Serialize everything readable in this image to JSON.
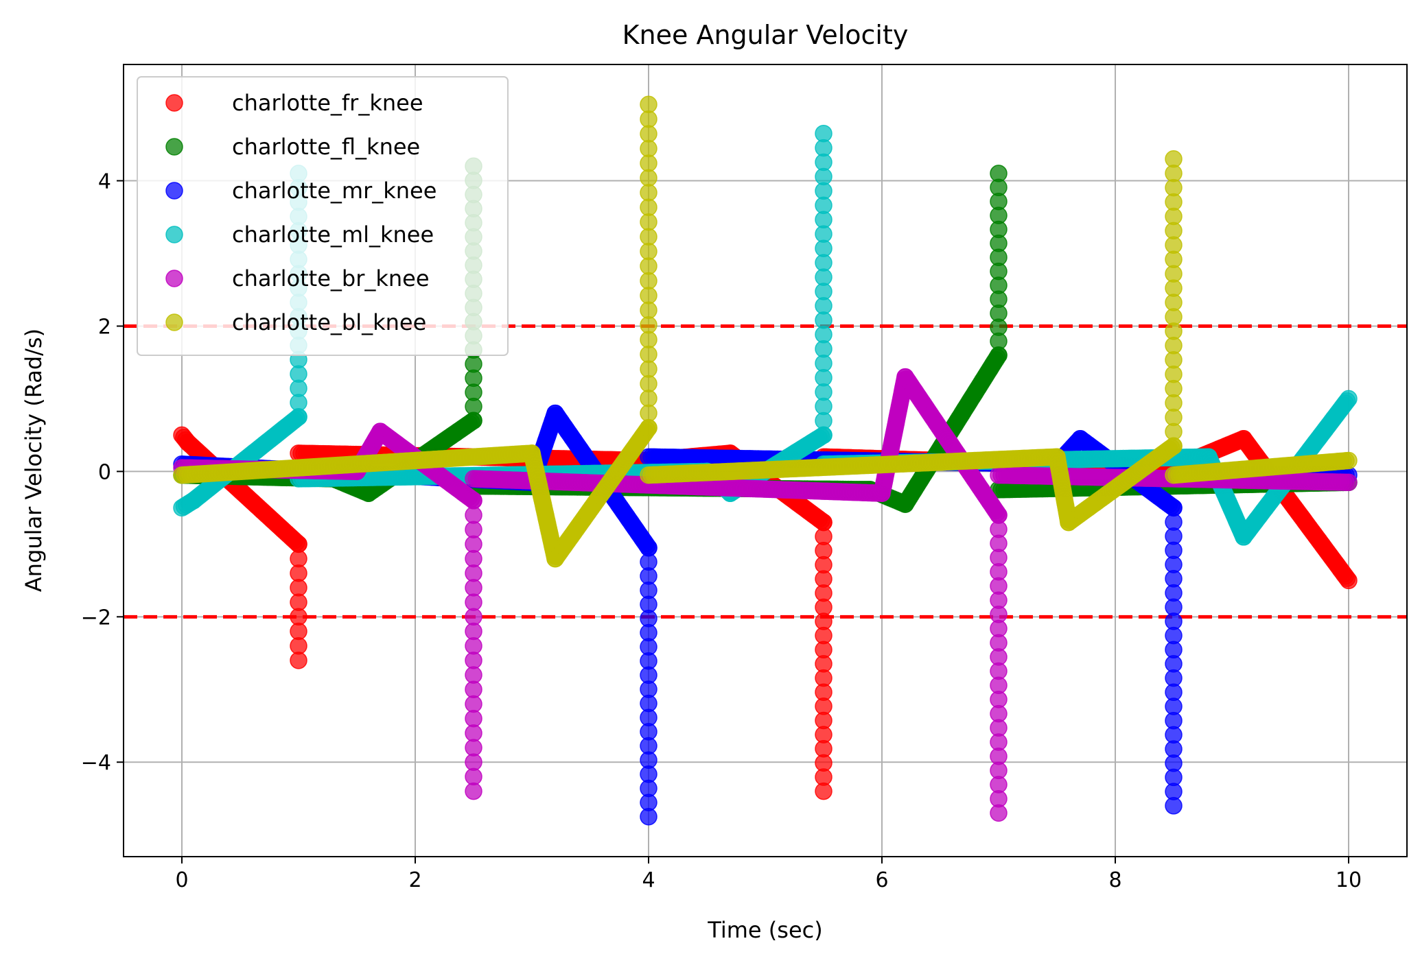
{
  "chart_data": {
    "type": "scatter",
    "title": "Knee Angular Velocity",
    "xlabel": "Time (sec)",
    "ylabel": "Angular Velocity (Rad/s)",
    "xlim": [
      -0.5,
      10.5
    ],
    "ylim": [
      -5.3,
      5.6
    ],
    "xticks": [
      0,
      2,
      4,
      6,
      8,
      10
    ],
    "yticks": [
      -4,
      -2,
      0,
      2,
      4
    ],
    "xtick_labels": [
      "0",
      "2",
      "4",
      "6",
      "8",
      "10"
    ],
    "ytick_labels": [
      "−4",
      "−2",
      "0",
      "2",
      "4"
    ],
    "grid": true,
    "legend_position": "top-left",
    "threshold_lines": [
      {
        "y": 2.0,
        "color": "#ff0000",
        "style": "dashed"
      },
      {
        "y": -2.0,
        "color": "#ff0000",
        "style": "dashed"
      }
    ],
    "series": [
      {
        "name": "charlotte_fr_knee",
        "color": "#ff0000",
        "segments": [
          [
            [
              0,
              0.5
            ],
            [
              0.05,
              0.4
            ],
            [
              1.0,
              -1.0
            ]
          ],
          [
            [
              1.0,
              -1.0
            ],
            [
              1.0,
              -2.6
            ]
          ],
          [
            [
              1.0,
              0.25
            ],
            [
              4.0,
              0.15
            ],
            [
              4.7,
              0.25
            ],
            [
              5.5,
              -0.7
            ]
          ],
          [
            [
              5.5,
              -0.7
            ],
            [
              5.5,
              -4.4
            ]
          ],
          [
            [
              5.5,
              0.2
            ],
            [
              8.5,
              0.05
            ],
            [
              9.1,
              0.45
            ],
            [
              10.0,
              -1.5
            ]
          ]
        ]
      },
      {
        "name": "charlotte_fl_knee",
        "color": "#008000",
        "segments": [
          [
            [
              0,
              -0.05
            ],
            [
              1.3,
              -0.1
            ],
            [
              1.6,
              -0.3
            ],
            [
              2.5,
              0.7
            ]
          ],
          [
            [
              2.5,
              0.7
            ],
            [
              2.5,
              4.2
            ]
          ],
          [
            [
              2.5,
              -0.2
            ],
            [
              5.9,
              -0.25
            ],
            [
              6.2,
              -0.45
            ],
            [
              7.0,
              1.6
            ]
          ],
          [
            [
              7.0,
              1.6
            ],
            [
              7.0,
              4.1
            ]
          ],
          [
            [
              7.0,
              -0.25
            ],
            [
              10.0,
              -0.15
            ]
          ]
        ]
      },
      {
        "name": "charlotte_mr_knee",
        "color": "#0000ff",
        "segments": [
          [
            [
              0,
              0.1
            ],
            [
              3.0,
              -0.15
            ],
            [
              3.2,
              0.8
            ],
            [
              4.0,
              -1.05
            ]
          ],
          [
            [
              4.0,
              -1.05
            ],
            [
              4.0,
              -4.75
            ]
          ],
          [
            [
              4.0,
              0.2
            ],
            [
              7.5,
              0.1
            ],
            [
              7.7,
              0.45
            ],
            [
              8.5,
              -0.5
            ]
          ],
          [
            [
              8.5,
              -0.5
            ],
            [
              8.5,
              -4.6
            ]
          ],
          [
            [
              8.5,
              -0.05
            ],
            [
              10.0,
              -0.05
            ]
          ]
        ]
      },
      {
        "name": "charlotte_ml_knee",
        "color": "#00bfbf",
        "segments": [
          [
            [
              0,
              -0.5
            ],
            [
              0.1,
              -0.4
            ],
            [
              1.0,
              0.75
            ]
          ],
          [
            [
              1.0,
              0.75
            ],
            [
              1.0,
              4.1
            ]
          ],
          [
            [
              1.0,
              -0.1
            ],
            [
              4.5,
              0.0
            ],
            [
              4.7,
              -0.3
            ],
            [
              5.5,
              0.5
            ]
          ],
          [
            [
              5.5,
              0.5
            ],
            [
              5.5,
              4.65
            ]
          ],
          [
            [
              5.5,
              0.1
            ],
            [
              8.8,
              0.2
            ],
            [
              9.1,
              -0.9
            ],
            [
              10.0,
              1.0
            ]
          ]
        ]
      },
      {
        "name": "charlotte_br_knee",
        "color": "#bf00bf",
        "segments": [
          [
            [
              0,
              0.05
            ],
            [
              1.5,
              0.0
            ],
            [
              1.7,
              0.55
            ],
            [
              2.5,
              -0.4
            ]
          ],
          [
            [
              2.5,
              -0.4
            ],
            [
              2.5,
              -4.4
            ]
          ],
          [
            [
              2.5,
              -0.1
            ],
            [
              6.0,
              -0.3
            ],
            [
              6.2,
              1.3
            ],
            [
              7.0,
              -0.6
            ]
          ],
          [
            [
              7.0,
              -0.6
            ],
            [
              7.0,
              -4.7
            ]
          ],
          [
            [
              7.0,
              -0.05
            ],
            [
              10.0,
              -0.15
            ]
          ]
        ]
      },
      {
        "name": "charlotte_bl_knee",
        "color": "#bfbf00",
        "segments": [
          [
            [
              0,
              -0.05
            ],
            [
              3.0,
              0.25
            ],
            [
              3.2,
              -1.2
            ],
            [
              4.0,
              0.6
            ]
          ],
          [
            [
              4.0,
              0.6
            ],
            [
              4.0,
              5.05
            ]
          ],
          [
            [
              4.0,
              -0.05
            ],
            [
              7.5,
              0.2
            ],
            [
              7.6,
              -0.7
            ],
            [
              8.5,
              0.35
            ]
          ],
          [
            [
              8.5,
              0.35
            ],
            [
              8.5,
              4.3
            ]
          ],
          [
            [
              8.5,
              -0.05
            ],
            [
              10.0,
              0.15
            ]
          ]
        ]
      }
    ]
  }
}
